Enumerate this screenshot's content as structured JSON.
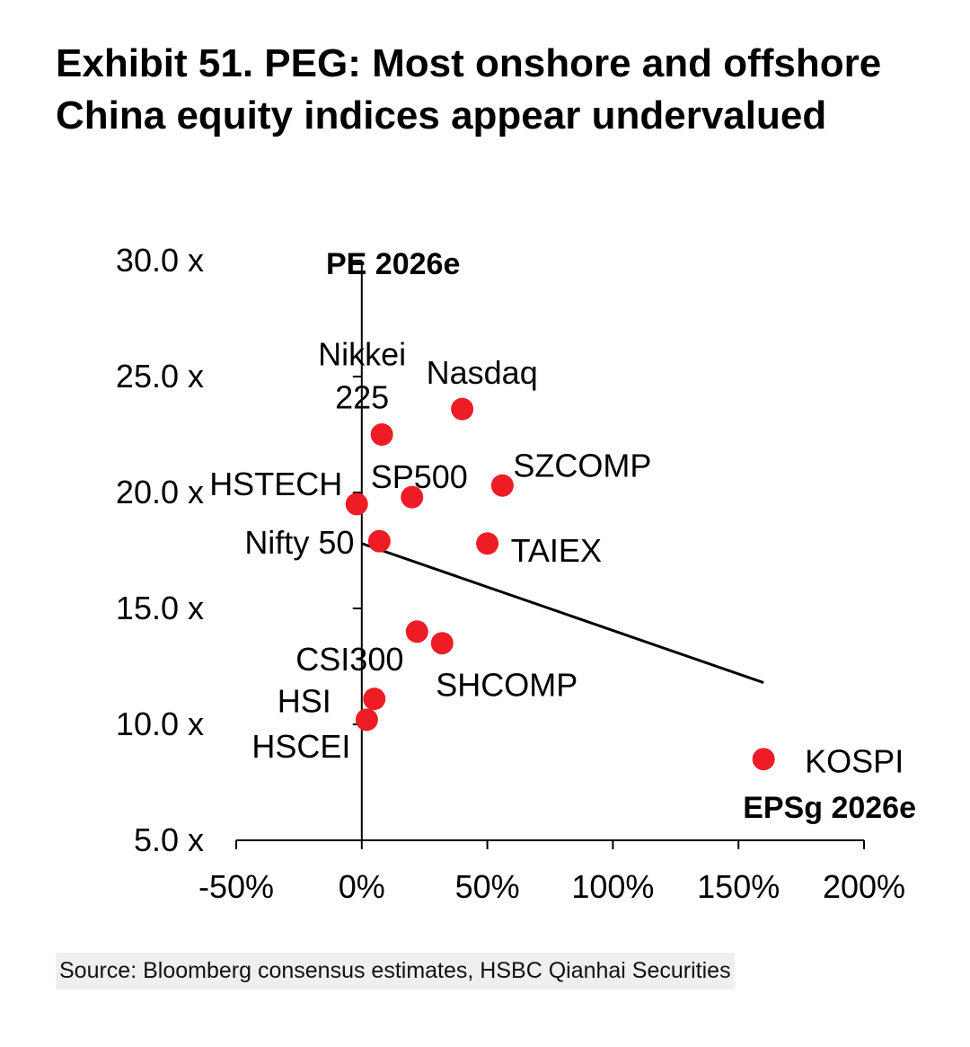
{
  "title": "Exhibit 51. PEG: Most onshore and offshore China equity indices appear undervalued",
  "source": "Source: Bloomberg consensus estimates, HSBC Qianhai Securities",
  "chart_data": {
    "type": "scatter",
    "xlabel": "EPSg 2026e",
    "ylabel": "PE 2026e",
    "xlim": [
      -0.5,
      2.0
    ],
    "ylim": [
      5,
      30
    ],
    "x_ticks": [
      "-50%",
      "0%",
      "50%",
      "100%",
      "150%",
      "200%"
    ],
    "y_ticks": [
      "5.0 x",
      "10.0 x",
      "15.0 x",
      "20.0 x",
      "25.0 x",
      "30.0 x"
    ],
    "marker_color": "#ee1c25",
    "trendline": {
      "x": [
        0.0,
        1.6
      ],
      "y": [
        17.8,
        11.8
      ]
    },
    "points": [
      {
        "name": "Nasdaq",
        "x": 0.4,
        "y": 23.6
      },
      {
        "name": "Nikkei 225",
        "x": 0.08,
        "y": 22.5
      },
      {
        "name": "SZCOMP",
        "x": 0.56,
        "y": 20.3
      },
      {
        "name": "SP500",
        "x": 0.2,
        "y": 19.8
      },
      {
        "name": "HSTECH",
        "x": -0.02,
        "y": 19.5
      },
      {
        "name": "Nifty 50",
        "x": 0.07,
        "y": 17.9
      },
      {
        "name": "TAIEX",
        "x": 0.5,
        "y": 17.8
      },
      {
        "name": "CSI300",
        "x": 0.22,
        "y": 14.0
      },
      {
        "name": "SHCOMP",
        "x": 0.32,
        "y": 13.5
      },
      {
        "name": "HSI",
        "x": 0.05,
        "y": 11.1
      },
      {
        "name": "HSCEI",
        "x": 0.02,
        "y": 10.2
      },
      {
        "name": "KOSPI",
        "x": 1.6,
        "y": 8.5
      }
    ]
  }
}
